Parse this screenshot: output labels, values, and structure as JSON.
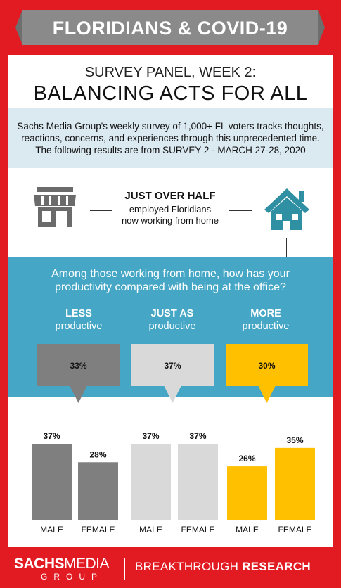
{
  "banner": {
    "title": "FLORIDIANS & COVID-19"
  },
  "header": {
    "subtitle": "SURVEY PANEL, WEEK 2:",
    "headline": "BALANCING ACTS FOR ALL"
  },
  "intro": {
    "lines": [
      "Sachs Media Group's weekly survey of 1,000+ FL voters tracks thoughts,",
      "reactions, concerns, and experiences through this unprecedented time.",
      "The following results are from SURVEY 2 - MARCH 27-28, 2020"
    ]
  },
  "work_from_home": {
    "headline": "JUST OVER HALF",
    "line1": "employed Floridians",
    "line2": "now working from home",
    "left_icon": "storefront-icon",
    "right_icon": "house-icon"
  },
  "question": {
    "line1": "Among those working from home, how has your",
    "line2": "productivity compared with being at the office?"
  },
  "colors": {
    "frame": "#e21b23",
    "banner": "#8a8a8a",
    "intro_bg": "#dbe9f1",
    "question_bg": "#45a7c5",
    "less": "#7f7f7f",
    "same": "#d9d9d9",
    "more": "#ffc000"
  },
  "chart_data": [
    {
      "type": "bar",
      "categories": [
        "LESS productive",
        "JUST AS productive",
        "MORE productive"
      ],
      "category_lines": [
        {
          "strong": "LESS",
          "sub": "productive"
        },
        {
          "strong": "JUST AS",
          "sub": "productive"
        },
        {
          "strong": "MORE",
          "sub": "productive"
        }
      ],
      "values": [
        33,
        37,
        30
      ],
      "value_labels": [
        "33%",
        "37%",
        "30%"
      ]
    },
    {
      "type": "bar",
      "groups": [
        "LESS",
        "JUST AS",
        "MORE"
      ],
      "categories": [
        "MALE",
        "FEMALE"
      ],
      "series": [
        {
          "values": [
            37,
            28
          ],
          "labels": [
            "37%",
            "28%"
          ]
        },
        {
          "values": [
            37,
            37
          ],
          "labels": [
            "37%",
            "37%"
          ]
        },
        {
          "values": [
            26,
            35
          ],
          "labels": [
            "26%",
            "35%"
          ]
        }
      ]
    }
  ],
  "footer": {
    "brand_bold": "SACHS",
    "brand_regular": "MEDIA",
    "brand_group": "GROUP",
    "tag_regular": "BREAKTHROUGH ",
    "tag_bold": "RESEARCH"
  }
}
